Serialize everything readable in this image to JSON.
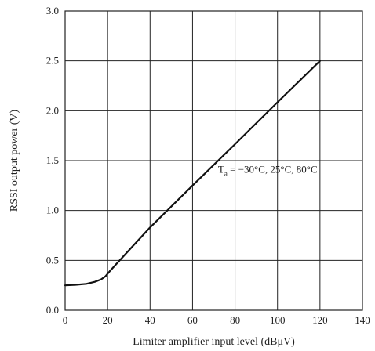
{
  "chart_data": {
    "type": "line",
    "xlabel": "Limiter amplifier input level (dBμV)",
    "ylabel": "RSSI output power (V)",
    "xlim": [
      0,
      140
    ],
    "ylim": [
      0,
      3.0
    ],
    "xticks": [
      0,
      20,
      40,
      60,
      80,
      100,
      120,
      140
    ],
    "yticks": [
      0.0,
      0.5,
      1.0,
      1.5,
      2.0,
      2.5,
      3.0
    ],
    "x_tick_labels": [
      "0",
      "20",
      "40",
      "60",
      "80",
      "100",
      "120",
      "140"
    ],
    "y_tick_labels": [
      "0.0",
      "0.5",
      "1.0",
      "1.5",
      "2.0",
      "2.5",
      "3.0"
    ],
    "grid": true,
    "series": [
      {
        "x": [
          0,
          5,
          10,
          14,
          17,
          19,
          21,
          30,
          40,
          60,
          80,
          100,
          120
        ],
        "y": [
          0.25,
          0.255,
          0.265,
          0.285,
          0.31,
          0.34,
          0.39,
          0.6,
          0.83,
          1.25,
          1.665,
          2.085,
          2.5
        ]
      }
    ],
    "annotations": [
      {
        "text_main": "T",
        "text_sub": "a",
        "text_rest": " = −30°C, 25°C, 80°C",
        "x": 72,
        "y": 1.38
      }
    ]
  }
}
